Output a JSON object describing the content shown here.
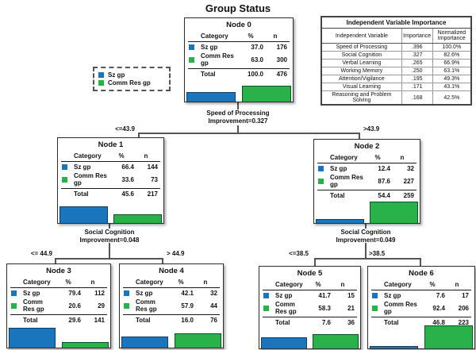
{
  "page_title": "Group Status",
  "colors": {
    "sz_blue": "#1b75bc",
    "comm_green": "#2ab24a"
  },
  "labels": {
    "sz": "Sz gp",
    "comm": "Comm Res gp",
    "total": "Total"
  },
  "node_table_header": {
    "category": "Category",
    "pct": "%",
    "n": "n"
  },
  "legend": {
    "items": [
      {
        "label": "Sz gp"
      },
      {
        "label": "Comm Res gp"
      }
    ]
  },
  "importance_table": {
    "title": "Independent Variable Importance",
    "columns": [
      "Independent Variable",
      "Importance",
      "Normalized Importance"
    ],
    "rows": [
      [
        "Speed of Processing",
        ".396",
        "100.0%"
      ],
      [
        "Social Cognition",
        ".327",
        "82.6%"
      ],
      [
        "Verbal Learning",
        ".265",
        "66.9%"
      ],
      [
        "Working Memory",
        ".250",
        "63.1%"
      ],
      [
        "Attention/Vigilance",
        ".195",
        "49.3%"
      ],
      [
        "Visual Learning",
        ".171",
        "43.1%"
      ],
      [
        "Reasoning and Problem Solving",
        ".168",
        "42.5%"
      ]
    ]
  },
  "splits": {
    "root": {
      "line1": "Speed of Processing",
      "line2": "Improvement=0.327",
      "left": "<=43.9",
      "right": ">43.9"
    },
    "node1": {
      "line1": "Social Cognition",
      "line2": "Improvement=0.048",
      "left": "<= 44.9",
      "right": "> 44.9"
    },
    "node2": {
      "line1": "Social Cognition",
      "line2": "Improvement=0.049",
      "left": "<=38.5",
      "right": ">38.5"
    }
  },
  "nodes": {
    "node0": {
      "title": "Node 0",
      "sz_pct": "37.0",
      "sz_n": "176",
      "comm_pct": "63.0",
      "comm_n": "300",
      "total_pct": "100.0",
      "total_n": "476",
      "bars": {
        "sz": 37.0,
        "comm": 63.0
      }
    },
    "node1": {
      "title": "Node 1",
      "sz_pct": "66.4",
      "sz_n": "144",
      "comm_pct": "33.6",
      "comm_n": "73",
      "total_pct": "45.6",
      "total_n": "217",
      "bars": {
        "sz": 66.4,
        "comm": 33.6
      }
    },
    "node2": {
      "title": "Node 2",
      "sz_pct": "12.4",
      "sz_n": "32",
      "comm_pct": "87.6",
      "comm_n": "227",
      "total_pct": "54.4",
      "total_n": "259",
      "bars": {
        "sz": 12.4,
        "comm": 87.6
      }
    },
    "node3": {
      "title": "Node 3",
      "sz_pct": "79.4",
      "sz_n": "112",
      "comm_pct": "20.6",
      "comm_n": "29",
      "total_pct": "29.6",
      "total_n": "141",
      "bars": {
        "sz": 79.4,
        "comm": 20.6
      }
    },
    "node4": {
      "title": "Node 4",
      "sz_pct": "42.1",
      "sz_n": "32",
      "comm_pct": "57.9",
      "comm_n": "44",
      "total_pct": "16.0",
      "total_n": "76",
      "bars": {
        "sz": 42.1,
        "comm": 57.9
      }
    },
    "node5": {
      "title": "Node 5",
      "sz_pct": "41.7",
      "sz_n": "15",
      "comm_pct": "58.3",
      "comm_n": "21",
      "total_pct": "7.6",
      "total_n": "36",
      "bars": {
        "sz": 41.7,
        "comm": 58.3
      }
    },
    "node6": {
      "title": "Node 6",
      "sz_pct": "7.6",
      "sz_n": "17",
      "comm_pct": "92.4",
      "comm_n": "206",
      "total_pct": "46.8",
      "total_n": "223",
      "bars": {
        "sz": 7.6,
        "comm": 92.4
      }
    }
  }
}
